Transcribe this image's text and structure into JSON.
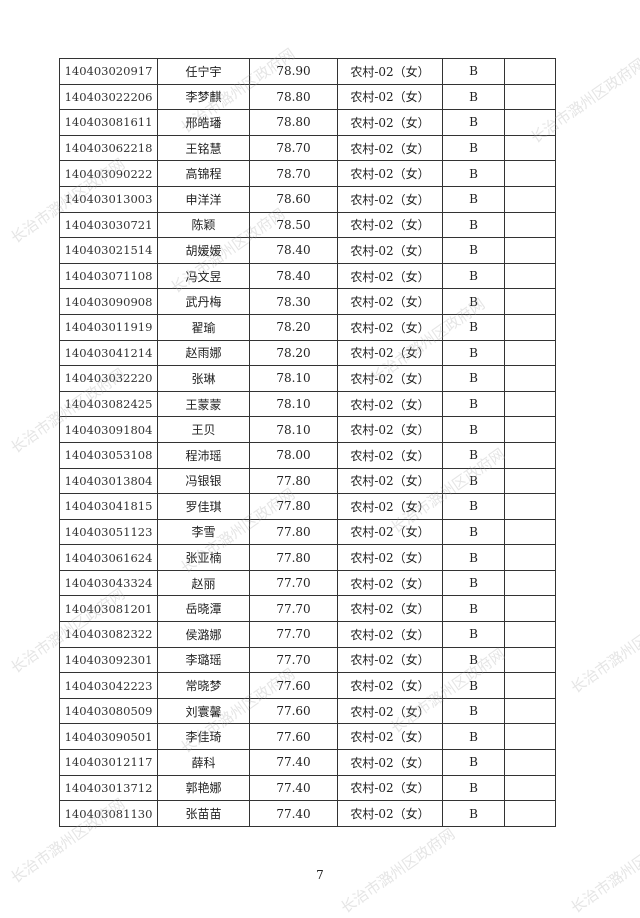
{
  "watermark": "长治市潞州区政府网",
  "page_number": "7",
  "rows": [
    [
      "140403020917",
      "任宁宇",
      "78.90",
      "农村-02（女）",
      "B",
      ""
    ],
    [
      "140403022206",
      "李梦麒",
      "78.80",
      "农村-02（女）",
      "B",
      ""
    ],
    [
      "140403081611",
      "邢皓璠",
      "78.80",
      "农村-02（女）",
      "B",
      ""
    ],
    [
      "140403062218",
      "王铭慧",
      "78.70",
      "农村-02（女）",
      "B",
      ""
    ],
    [
      "140403090222",
      "高锦程",
      "78.70",
      "农村-02（女）",
      "B",
      ""
    ],
    [
      "140403013003",
      "申洋洋",
      "78.60",
      "农村-02（女）",
      "B",
      ""
    ],
    [
      "140403030721",
      "陈颖",
      "78.50",
      "农村-02（女）",
      "B",
      ""
    ],
    [
      "140403021514",
      "胡媛媛",
      "78.40",
      "农村-02（女）",
      "B",
      ""
    ],
    [
      "140403071108",
      "冯文昱",
      "78.40",
      "农村-02（女）",
      "B",
      ""
    ],
    [
      "140403090908",
      "武丹梅",
      "78.30",
      "农村-02（女）",
      "B",
      ""
    ],
    [
      "140403011919",
      "翟瑜",
      "78.20",
      "农村-02（女）",
      "B",
      ""
    ],
    [
      "140403041214",
      "赵雨娜",
      "78.20",
      "农村-02（女）",
      "B",
      ""
    ],
    [
      "140403032220",
      "张琳",
      "78.10",
      "农村-02（女）",
      "B",
      ""
    ],
    [
      "140403082425",
      "王蒙蒙",
      "78.10",
      "农村-02（女）",
      "B",
      ""
    ],
    [
      "140403091804",
      "王贝",
      "78.10",
      "农村-02（女）",
      "B",
      ""
    ],
    [
      "140403053108",
      "程沛瑶",
      "78.00",
      "农村-02（女）",
      "B",
      ""
    ],
    [
      "140403013804",
      "冯银银",
      "77.80",
      "农村-02（女）",
      "B",
      ""
    ],
    [
      "140403041815",
      "罗佳琪",
      "77.80",
      "农村-02（女）",
      "B",
      ""
    ],
    [
      "140403051123",
      "李雪",
      "77.80",
      "农村-02（女）",
      "B",
      ""
    ],
    [
      "140403061624",
      "张亚楠",
      "77.80",
      "农村-02（女）",
      "B",
      ""
    ],
    [
      "140403043324",
      "赵丽",
      "77.70",
      "农村-02（女）",
      "B",
      ""
    ],
    [
      "140403081201",
      "岳晓潭",
      "77.70",
      "农村-02（女）",
      "B",
      ""
    ],
    [
      "140403082322",
      "侯潞娜",
      "77.70",
      "农村-02（女）",
      "B",
      ""
    ],
    [
      "140403092301",
      "李璐瑶",
      "77.70",
      "农村-02（女）",
      "B",
      ""
    ],
    [
      "140403042223",
      "常晓梦",
      "77.60",
      "农村-02（女）",
      "B",
      ""
    ],
    [
      "140403080509",
      "刘寰馨",
      "77.60",
      "农村-02（女）",
      "B",
      ""
    ],
    [
      "140403090501",
      "李佳琦",
      "77.60",
      "农村-02（女）",
      "B",
      ""
    ],
    [
      "140403012117",
      "薛科",
      "77.40",
      "农村-02（女）",
      "B",
      ""
    ],
    [
      "140403013712",
      "郭艳娜",
      "77.40",
      "农村-02（女）",
      "B",
      ""
    ],
    [
      "140403081130",
      "张苗苗",
      "77.40",
      "农村-02（女）",
      "B",
      ""
    ]
  ]
}
